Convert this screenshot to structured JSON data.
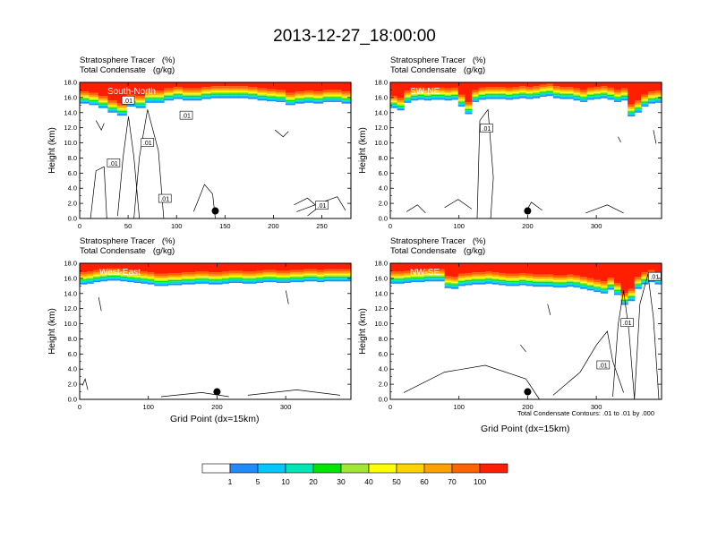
{
  "main_title": "2013-12-27_18:00:00",
  "footnote": "Total Condensate Contours: .01 to .01 by .000",
  "x_axis_title": "Grid Point (dx=15km)",
  "colors": {
    "levels": [
      "#ffffff",
      "#1e8cff",
      "#00c8ff",
      "#00e6b4",
      "#00e600",
      "#a0e632",
      "#ffff00",
      "#ffd200",
      "#ffa000",
      "#ff6400",
      "#ff1e00"
    ],
    "contour": "#000000"
  },
  "chart_data": [
    {
      "type": "heatmap",
      "id": "south-north",
      "variable_labels": [
        "Stratosphere Tracer   (%)",
        "Total Condensate   (g/kg)"
      ],
      "cross_section": "South-North",
      "ylabel": "Height (km)",
      "ylim": [
        0,
        18
      ],
      "yticks": [
        "0.0",
        "2.0",
        "4.0",
        "6.0",
        "8.0",
        "10.0",
        "12.0",
        "14.0",
        "16.0",
        "18.0"
      ],
      "xlim": [
        0,
        280
      ],
      "xticks": [
        0,
        50,
        100,
        150,
        200,
        250
      ],
      "marker_point": [
        140,
        1
      ],
      "tracer_base_km": [
        15.2,
        15.0,
        14.6,
        14.0,
        13.6,
        14.8,
        14.6,
        15.3,
        15.3,
        15.6,
        15.8,
        15.6,
        15.6,
        15.8,
        15.9,
        15.9,
        15.9,
        15.9,
        15.8,
        15.6,
        15.5,
        15.4,
        15.0,
        15.2,
        15.3,
        15.2,
        15.4,
        15.4,
        15.2
      ],
      "contour_labels": [
        {
          "text": ".01",
          "x": 50,
          "y": 15.6
        },
        {
          "text": ".01",
          "x": 110,
          "y": 13.6
        },
        {
          "text": ".01",
          "x": 70,
          "y": 10.0
        },
        {
          "text": ".01",
          "x": 35,
          "y": 7.3
        },
        {
          "text": ".01",
          "x": 88,
          "y": 2.6
        },
        {
          "text": ".01",
          "x": 250,
          "y": 1.7
        }
      ]
    },
    {
      "type": "heatmap",
      "id": "sw-ne",
      "variable_labels": [
        "Stratosphere Tracer   (%)",
        "Total Condensate   (g/kg)"
      ],
      "cross_section": "SW-NE",
      "ylabel": "Height (km)",
      "ylim": [
        0,
        18
      ],
      "yticks": [
        "0.0",
        "2.0",
        "4.0",
        "6.0",
        "8.0",
        "10.0",
        "12.0",
        "14.0",
        "16.0",
        "18.0"
      ],
      "xlim": [
        0,
        395
      ],
      "xticks": [
        0,
        100,
        200,
        300
      ],
      "marker_point": [
        200,
        1
      ],
      "tracer_base_km": [
        14.6,
        14.3,
        15.3,
        15.6,
        15.7,
        15.6,
        15.7,
        15.7,
        15.6,
        15.7,
        14.8,
        13.8,
        15.4,
        15.7,
        15.8,
        15.8,
        15.8,
        15.7,
        15.8,
        15.9,
        15.8,
        15.9,
        16.1,
        16.2,
        15.9,
        15.8,
        15.8,
        15.6,
        15.4,
        15.7,
        15.8,
        15.9,
        15.7,
        15.4,
        15.6,
        13.5,
        14.0,
        14.8,
        15.2,
        15.3
      ],
      "contour_labels": [
        {
          "text": ".01",
          "x": 140,
          "y": 11.9
        }
      ]
    },
    {
      "type": "heatmap",
      "id": "west-east",
      "variable_labels": [
        "Stratosphere Tracer   (%)",
        "Total Condensate   (g/kg)"
      ],
      "cross_section": "West-East",
      "ylabel": "Height (km)",
      "ylim": [
        0,
        18
      ],
      "yticks": [
        "0.0",
        "2.0",
        "4.0",
        "6.0",
        "8.0",
        "10.0",
        "12.0",
        "14.0",
        "16.0",
        "18.0"
      ],
      "xlim": [
        0,
        395
      ],
      "xticks": [
        0,
        100,
        200,
        300
      ],
      "marker_point": [
        200,
        1
      ],
      "tracer_base_km": [
        15.2,
        15.3,
        15.5,
        15.6,
        15.7,
        15.7,
        15.6,
        15.5,
        15.4,
        15.3,
        15.2,
        15.0,
        15.0,
        15.1,
        15.1,
        15.2,
        15.2,
        15.3,
        15.3,
        15.2,
        15.2,
        15.3,
        15.4,
        15.4,
        15.3,
        15.3,
        15.4,
        15.5,
        15.5,
        15.4,
        15.4,
        15.5,
        15.5,
        15.6,
        15.6,
        15.5,
        15.6,
        15.6,
        15.6,
        15.6
      ],
      "contour_labels": []
    },
    {
      "type": "heatmap",
      "id": "nw-se",
      "variable_labels": [
        "Stratosphere Tracer   (%)",
        "Total Condensate   (g/kg)"
      ],
      "cross_section": "NW-SE",
      "ylabel": "Height (km)",
      "ylim": [
        0,
        18
      ],
      "yticks": [
        "0.0",
        "2.0",
        "4.0",
        "6.0",
        "8.0",
        "10.0",
        "12.0",
        "14.0",
        "16.0",
        "18.0"
      ],
      "xlim": [
        0,
        395
      ],
      "xticks": [
        0,
        100,
        200,
        300
      ],
      "marker_point": [
        200,
        1
      ],
      "tracer_base_km": [
        15.3,
        15.3,
        15.4,
        15.5,
        15.5,
        15.6,
        15.6,
        15.6,
        14.7,
        14.6,
        15.0,
        15.1,
        15.2,
        15.2,
        15.3,
        15.2,
        15.1,
        15.0,
        15.0,
        15.1,
        15.0,
        14.9,
        14.9,
        14.9,
        14.8,
        14.8,
        14.9,
        14.8,
        14.6,
        14.4,
        14.2,
        14.0,
        14.5,
        13.8,
        12.5,
        13.0,
        14.6,
        15.2,
        15.5,
        15.2
      ],
      "contour_labels": [
        {
          "text": ".01",
          "x": 345,
          "y": 10.1
        },
        {
          "text": ".01",
          "x": 310,
          "y": 4.5
        },
        {
          "text": ".01",
          "x": 385,
          "y": 16.2
        }
      ]
    }
  ],
  "colorbar": {
    "labels": [
      "1",
      "5",
      "10",
      "20",
      "30",
      "40",
      "50",
      "60",
      "70",
      "100"
    ]
  }
}
